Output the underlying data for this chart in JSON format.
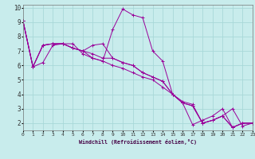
{
  "xlabel": "Windchill (Refroidissement éolien,°C)",
  "bg_color": "#c8ecec",
  "grid_color": "#a8d8d8",
  "line_color": "#990099",
  "xlim": [
    0,
    23
  ],
  "ylim": [
    1.5,
    10.2
  ],
  "xticks": [
    0,
    1,
    2,
    3,
    4,
    5,
    6,
    7,
    8,
    9,
    10,
    11,
    12,
    13,
    14,
    15,
    16,
    17,
    18,
    19,
    20,
    21,
    22,
    23
  ],
  "yticks": [
    2,
    3,
    4,
    5,
    6,
    7,
    8,
    9,
    10
  ],
  "series": [
    [
      [
        0,
        9.1
      ],
      [
        1,
        5.9
      ],
      [
        2,
        7.4
      ],
      [
        3,
        7.5
      ],
      [
        4,
        7.5
      ],
      [
        5,
        7.2
      ],
      [
        6,
        7.0
      ],
      [
        7,
        6.5
      ],
      [
        8,
        6.3
      ],
      [
        9,
        6.0
      ],
      [
        10,
        5.8
      ],
      [
        11,
        5.5
      ],
      [
        12,
        5.2
      ],
      [
        13,
        5.0
      ],
      [
        14,
        4.5
      ],
      [
        15,
        4.0
      ],
      [
        16,
        3.5
      ],
      [
        17,
        3.3
      ],
      [
        18,
        2.0
      ],
      [
        19,
        2.2
      ],
      [
        20,
        2.5
      ],
      [
        21,
        3.0
      ],
      [
        22,
        1.8
      ],
      [
        23,
        2.0
      ]
    ],
    [
      [
        0,
        9.1
      ],
      [
        1,
        5.9
      ],
      [
        2,
        6.2
      ],
      [
        3,
        7.4
      ],
      [
        4,
        7.5
      ],
      [
        5,
        7.5
      ],
      [
        6,
        6.8
      ],
      [
        7,
        6.5
      ],
      [
        8,
        6.3
      ],
      [
        9,
        8.5
      ],
      [
        10,
        9.9
      ],
      [
        11,
        9.5
      ],
      [
        12,
        9.3
      ],
      [
        13,
        7.0
      ],
      [
        14,
        6.3
      ],
      [
        15,
        4.0
      ],
      [
        16,
        3.4
      ],
      [
        17,
        1.9
      ],
      [
        18,
        2.2
      ],
      [
        19,
        2.5
      ],
      [
        20,
        3.0
      ],
      [
        21,
        1.7
      ],
      [
        22,
        2.0
      ],
      [
        23,
        2.0
      ]
    ],
    [
      [
        0,
        9.1
      ],
      [
        1,
        5.9
      ],
      [
        2,
        7.4
      ],
      [
        3,
        7.5
      ],
      [
        4,
        7.5
      ],
      [
        5,
        7.2
      ],
      [
        6,
        7.0
      ],
      [
        7,
        6.8
      ],
      [
        8,
        6.5
      ],
      [
        9,
        6.5
      ],
      [
        10,
        6.2
      ],
      [
        11,
        6.0
      ],
      [
        12,
        5.5
      ],
      [
        13,
        5.2
      ],
      [
        14,
        4.9
      ],
      [
        15,
        4.0
      ],
      [
        16,
        3.4
      ],
      [
        17,
        3.2
      ],
      [
        18,
        2.0
      ],
      [
        19,
        2.2
      ],
      [
        20,
        2.5
      ],
      [
        21,
        1.7
      ],
      [
        22,
        2.0
      ],
      [
        23,
        2.0
      ]
    ],
    [
      [
        0,
        9.1
      ],
      [
        1,
        5.9
      ],
      [
        2,
        7.4
      ],
      [
        3,
        7.5
      ],
      [
        4,
        7.5
      ],
      [
        5,
        7.2
      ],
      [
        6,
        7.0
      ],
      [
        7,
        7.4
      ],
      [
        8,
        7.5
      ],
      [
        9,
        6.5
      ],
      [
        10,
        6.2
      ],
      [
        11,
        6.0
      ],
      [
        12,
        5.5
      ],
      [
        13,
        5.2
      ],
      [
        14,
        4.9
      ],
      [
        15,
        4.0
      ],
      [
        16,
        3.4
      ],
      [
        17,
        3.2
      ],
      [
        18,
        2.0
      ],
      [
        19,
        2.2
      ],
      [
        20,
        2.5
      ],
      [
        21,
        1.7
      ],
      [
        22,
        2.0
      ],
      [
        23,
        2.0
      ]
    ]
  ]
}
